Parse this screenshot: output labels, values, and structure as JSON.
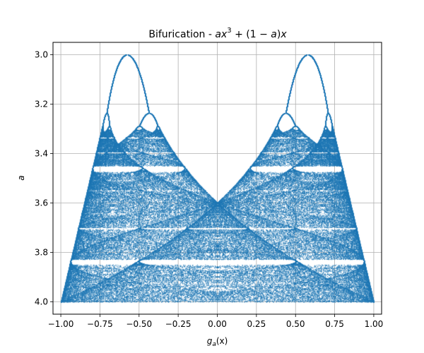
{
  "chart_data": {
    "type": "scatter",
    "title": {
      "prefix": "Bifurication - ",
      "formula": {
        "a1": "a",
        "x1": "x",
        "exp": "3",
        "mid": " + (1 − ",
        "a2": "a",
        "close": ")",
        "x2": "x"
      }
    },
    "xlabel": {
      "main": "g",
      "sub": "a",
      "rest": "(x)"
    },
    "ylabel": "a",
    "xlim": [
      -1.05,
      1.05
    ],
    "ylim": [
      4.05,
      2.95
    ],
    "y_inverted": true,
    "grid": true,
    "color": "#1f77b4",
    "xticks": [
      {
        "v": -1.0,
        "label": "−1.00"
      },
      {
        "v": -0.75,
        "label": "−0.75"
      },
      {
        "v": -0.5,
        "label": "−0.50"
      },
      {
        "v": -0.25,
        "label": "−0.25"
      },
      {
        "v": 0.0,
        "label": "0.00"
      },
      {
        "v": 0.25,
        "label": "0.25"
      },
      {
        "v": 0.5,
        "label": "0.50"
      },
      {
        "v": 0.75,
        "label": "0.75"
      },
      {
        "v": 1.0,
        "label": "1.00"
      }
    ],
    "yticks": [
      {
        "v": 3.0,
        "label": "3.0"
      },
      {
        "v": 3.2,
        "label": "3.2"
      },
      {
        "v": 3.4,
        "label": "3.4"
      },
      {
        "v": 3.6,
        "label": "3.6"
      },
      {
        "v": 3.8,
        "label": "3.8"
      },
      {
        "v": 4.0,
        "label": "4.0"
      }
    ],
    "series": [
      {
        "map": "a*x^3 + (1-a)*x",
        "a_range": [
          3.0,
          4.0
        ],
        "x0": [
          0.2,
          -0.2
        ]
      }
    ]
  }
}
